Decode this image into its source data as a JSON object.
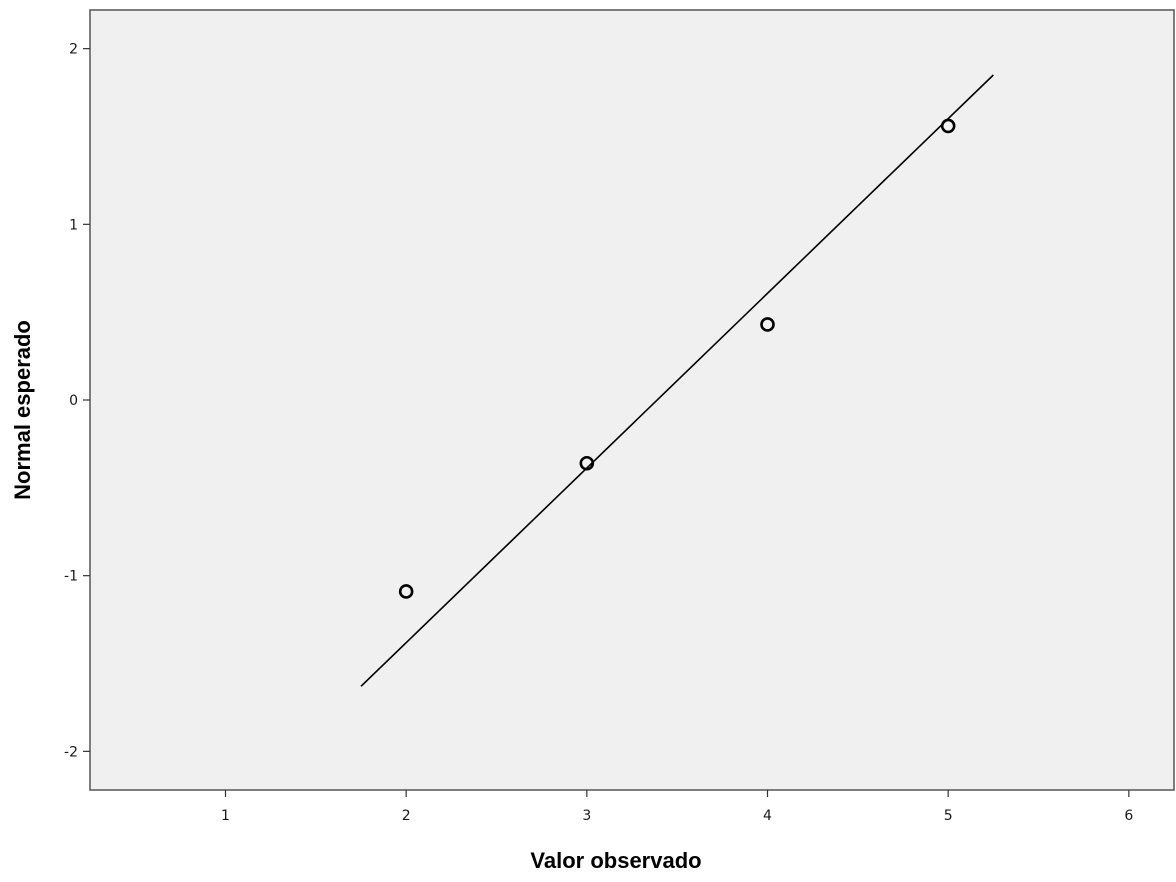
{
  "chart_data": {
    "type": "scatter",
    "title": "",
    "xlabel": "Valor observado",
    "ylabel": "Normal esperado",
    "xlim": [
      0.25,
      6.25
    ],
    "ylim": [
      -2.22,
      2.22
    ],
    "x_ticks": [
      1,
      2,
      3,
      4,
      5,
      6
    ],
    "y_ticks": [
      -2,
      -1,
      0,
      1,
      2
    ],
    "x_tick_labels": [
      "1",
      "2",
      "3",
      "4",
      "5",
      "6"
    ],
    "y_tick_labels": [
      "-2",
      "-1",
      "0",
      "1",
      "2"
    ],
    "grid": false,
    "legend": "none",
    "series": [
      {
        "kind": "points",
        "marker": "open-circle",
        "x": [
          2,
          3,
          4,
          5
        ],
        "y": [
          -1.09,
          -0.36,
          0.43,
          1.56
        ]
      },
      {
        "kind": "reference-line",
        "x": [
          1.75,
          5.25
        ],
        "y": [
          -1.63,
          1.85
        ]
      }
    ],
    "colors": {
      "plot_background": "#f0f0f0",
      "frame": "#555555",
      "line": "#000000",
      "marker": "#000000"
    }
  }
}
